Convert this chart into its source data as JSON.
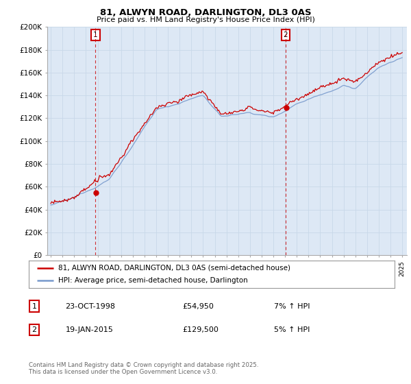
{
  "title": "81, ALWYN ROAD, DARLINGTON, DL3 0AS",
  "subtitle": "Price paid vs. HM Land Registry's House Price Index (HPI)",
  "ylim": [
    0,
    200000
  ],
  "yticks": [
    0,
    20000,
    40000,
    60000,
    80000,
    100000,
    120000,
    140000,
    160000,
    180000,
    200000
  ],
  "ytick_labels": [
    "£0",
    "£20K",
    "£40K",
    "£60K",
    "£80K",
    "£100K",
    "£120K",
    "£140K",
    "£160K",
    "£180K",
    "£200K"
  ],
  "red_line_color": "#cc0000",
  "blue_line_color": "#7799cc",
  "plot_bg_color": "#dde8f5",
  "vline_color": "#cc0000",
  "ann_border_color": "#cc0000",
  "legend_label_red": "81, ALWYN ROAD, DARLINGTON, DL3 0AS (semi-detached house)",
  "legend_label_blue": "HPI: Average price, semi-detached house, Darlington",
  "table_row1": [
    "1",
    "23-OCT-1998",
    "£54,950",
    "7% ↑ HPI"
  ],
  "table_row2": [
    "2",
    "19-JAN-2015",
    "£129,500",
    "5% ↑ HPI"
  ],
  "footer": "Contains HM Land Registry data © Crown copyright and database right 2025.\nThis data is licensed under the Open Government Licence v3.0.",
  "background_color": "#ffffff",
  "grid_color": "#c8d8e8",
  "vline1_year": 1998.8,
  "vline2_year": 2015.05,
  "sale1_price": 54950,
  "sale2_price": 129500
}
